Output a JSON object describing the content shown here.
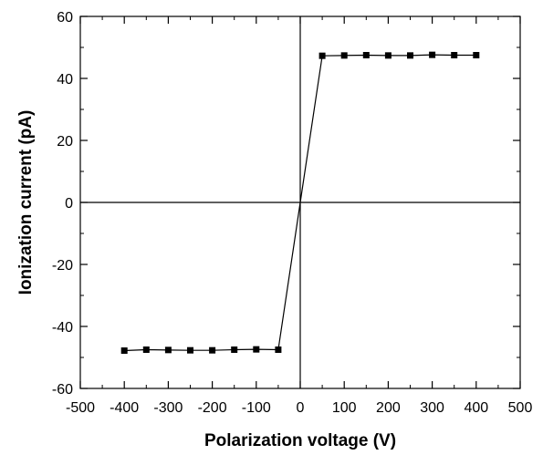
{
  "chart_data": {
    "type": "scatter",
    "title": "",
    "xlabel": "Polarization voltage (V)",
    "ylabel": "Ionization current (pA)",
    "xlim": [
      -500,
      500
    ],
    "ylim": [
      -60,
      60
    ],
    "x_ticks": [
      -500,
      -400,
      -300,
      -200,
      -100,
      0,
      100,
      200,
      300,
      400,
      500
    ],
    "y_ticks": [
      -60,
      -40,
      -20,
      0,
      20,
      40,
      60
    ],
    "x_tick_labels": [
      "-500",
      "-400",
      "-300",
      "-200",
      "-100",
      "0",
      "100",
      "200",
      "300",
      "400",
      "500"
    ],
    "y_tick_labels": [
      "-60",
      "-40",
      "-20",
      "0",
      "20",
      "40",
      "60"
    ],
    "grid": false,
    "zero_lines": true,
    "series": [
      {
        "marker": "square",
        "line": true,
        "color": "#000000",
        "x": [
          -400,
          -350,
          -300,
          -250,
          -200,
          -150,
          -100,
          -50,
          0,
          50,
          100,
          150,
          200,
          250,
          300,
          350,
          400
        ],
        "y": [
          -47.8,
          -47.5,
          -47.6,
          -47.7,
          -47.7,
          -47.5,
          -47.4,
          -47.5,
          0,
          47.3,
          47.4,
          47.5,
          47.4,
          47.4,
          47.6,
          47.5,
          47.5
        ],
        "marker_mask": [
          true,
          true,
          true,
          true,
          true,
          true,
          true,
          true,
          false,
          true,
          true,
          true,
          true,
          true,
          true,
          true,
          true
        ]
      }
    ]
  }
}
